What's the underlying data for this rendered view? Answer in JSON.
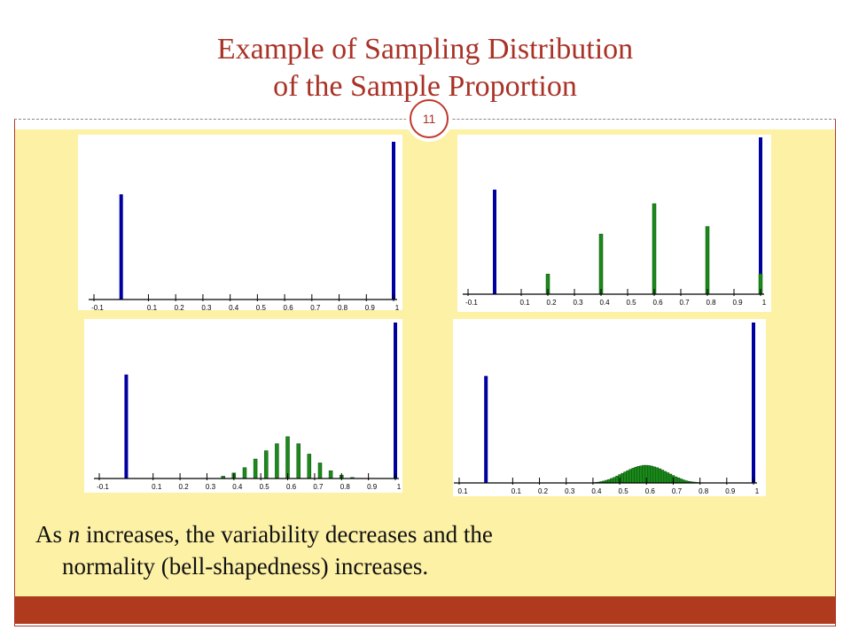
{
  "slide": {
    "title_line1": "Example of Sampling Distribution",
    "title_line2": "of the Sample Proportion",
    "number": "11",
    "caption_pre": "As ",
    "caption_var": "n",
    "caption_post": " increases, the variability decreases and the",
    "caption_line2": "normality (bell-shapedness) increases."
  },
  "colors": {
    "title": "#a93226",
    "blue_bar": "#0000a0",
    "green_bar": "#1a8a1a",
    "background": "#fdf1a6",
    "bottom_bar": "#b03a1e"
  },
  "chart_data": [
    {
      "type": "bar",
      "panel": "top-left",
      "x_ticks": [
        "-0.1",
        "0.1",
        "0.2",
        "0.3",
        "0.4",
        "0.5",
        "0.6",
        "0.7",
        "0.8",
        "0.9",
        "1"
      ],
      "xlim": [
        -0.1,
        1
      ],
      "series": [
        {
          "color": "blue",
          "x": [
            0,
            1
          ],
          "values": [
            0.4,
            0.6
          ]
        }
      ]
    },
    {
      "type": "bar",
      "panel": "top-right",
      "x_ticks": [
        "-0.1",
        "0.1",
        "0.2",
        "0.3",
        "0.4",
        "0.5",
        "0.6",
        "0.7",
        "0.8",
        "0.9",
        "1"
      ],
      "xlim": [
        -0.1,
        1
      ],
      "series": [
        {
          "color": "blue",
          "x": [
            0,
            1
          ],
          "values": [
            0.4,
            0.6
          ]
        },
        {
          "color": "green",
          "x": [
            0.2,
            0.4,
            0.6,
            0.8,
            1.0
          ],
          "values": [
            0.077,
            0.23,
            0.346,
            0.259,
            0.078
          ]
        }
      ]
    },
    {
      "type": "bar",
      "panel": "bottom-left",
      "x_ticks": [
        "-0.1",
        "0.1",
        "0.2",
        "0.3",
        "0.4",
        "0.5",
        "0.6",
        "0.7",
        "0.8",
        "0.9",
        "1"
      ],
      "xlim": [
        -0.1,
        1
      ],
      "series": [
        {
          "color": "blue",
          "x": [
            0,
            1
          ],
          "values": [
            0.4,
            0.6
          ]
        },
        {
          "color": "green",
          "x": [
            0.36,
            0.4,
            0.44,
            0.48,
            0.52,
            0.56,
            0.6,
            0.64,
            0.68,
            0.72,
            0.76,
            0.8,
            0.84
          ],
          "values": [
            0.009,
            0.021,
            0.042,
            0.075,
            0.107,
            0.134,
            0.161,
            0.134,
            0.094,
            0.06,
            0.03,
            0.013,
            0.004
          ]
        }
      ]
    },
    {
      "type": "bar",
      "panel": "bottom-right",
      "x_ticks": [
        "0.1",
        "0.1",
        "0.2",
        "0.3",
        "0.4",
        "0.5",
        "0.6",
        "0.7",
        "0.8",
        "0.9",
        "1"
      ],
      "xlim": [
        -0.1,
        1
      ],
      "series": [
        {
          "color": "blue",
          "x": [
            0,
            1
          ],
          "values": [
            0.4,
            0.6
          ]
        },
        {
          "color": "green",
          "x": [
            0.4,
            0.41,
            0.42,
            0.43,
            0.44,
            0.45,
            0.46,
            0.47,
            0.48,
            0.49,
            0.5,
            0.51,
            0.52,
            0.53,
            0.54,
            0.55,
            0.56,
            0.57,
            0.58,
            0.59,
            0.6,
            0.61,
            0.62,
            0.63,
            0.64,
            0.65,
            0.66,
            0.67,
            0.68,
            0.69,
            0.7,
            0.71,
            0.72,
            0.73,
            0.74,
            0.75,
            0.76,
            0.77,
            0.78,
            0.79,
            0.8
          ],
          "values": [
            0.001,
            0.002,
            0.003,
            0.005,
            0.007,
            0.01,
            0.013,
            0.017,
            0.021,
            0.026,
            0.031,
            0.036,
            0.041,
            0.046,
            0.051,
            0.055,
            0.059,
            0.062,
            0.064,
            0.066,
            0.066,
            0.065,
            0.063,
            0.06,
            0.057,
            0.053,
            0.048,
            0.043,
            0.038,
            0.033,
            0.028,
            0.023,
            0.019,
            0.015,
            0.011,
            0.008,
            0.006,
            0.004,
            0.003,
            0.002,
            0.001
          ]
        }
      ]
    }
  ]
}
